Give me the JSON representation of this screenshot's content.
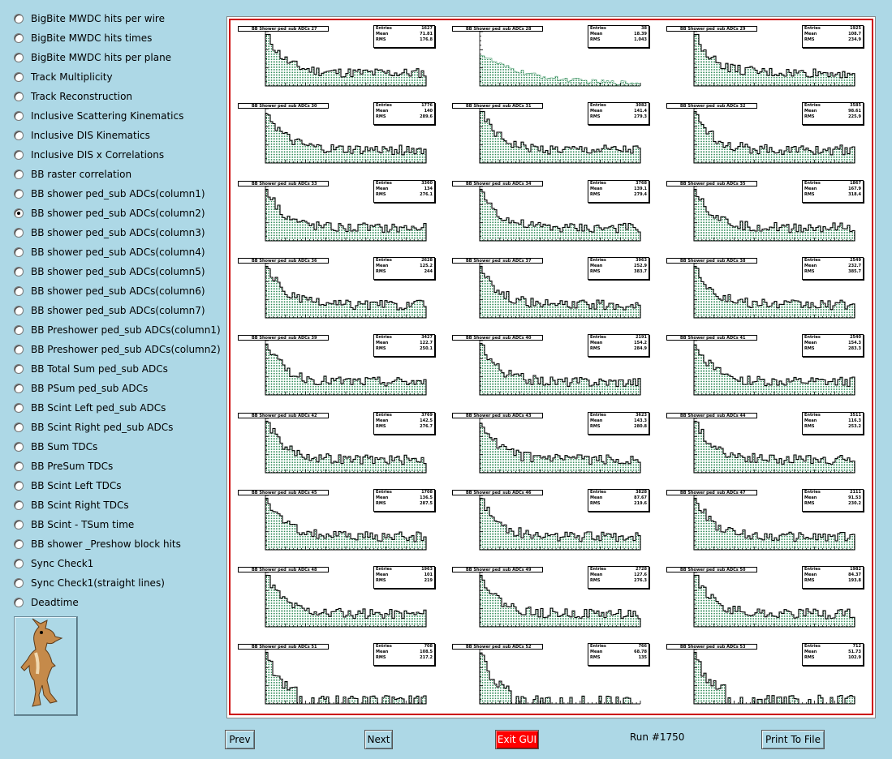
{
  "sidebar": {
    "items": [
      {
        "label": "BigBite MWDC hits per wire",
        "selected": false
      },
      {
        "label": "BigBite MWDC hits times",
        "selected": false
      },
      {
        "label": "BigBite MWDC hits per plane",
        "selected": false
      },
      {
        "label": "Track Multiplicity",
        "selected": false
      },
      {
        "label": "Track Reconstruction",
        "selected": false
      },
      {
        "label": "Inclusive Scattering Kinematics",
        "selected": false
      },
      {
        "label": "Inclusive DIS Kinematics",
        "selected": false
      },
      {
        "label": "Inclusive DIS x Correlations",
        "selected": false
      },
      {
        "label": "BB raster correlation",
        "selected": false
      },
      {
        "label": "BB shower ped_sub ADCs(column1)",
        "selected": false
      },
      {
        "label": "BB shower ped_sub ADCs(column2)",
        "selected": true
      },
      {
        "label": "BB shower ped_sub ADCs(column3)",
        "selected": false
      },
      {
        "label": "BB shower ped_sub ADCs(column4)",
        "selected": false
      },
      {
        "label": "BB shower ped_sub ADCs(column5)",
        "selected": false
      },
      {
        "label": "BB shower ped_sub ADCs(column6)",
        "selected": false
      },
      {
        "label": "BB shower ped_sub ADCs(column7)",
        "selected": false
      },
      {
        "label": "BB Preshower ped_sub ADCs(column1)",
        "selected": false
      },
      {
        "label": "BB Preshower ped_sub ADCs(column2)",
        "selected": false
      },
      {
        "label": "BB Total Sum ped_sub ADCs",
        "selected": false
      },
      {
        "label": "BB PSum ped_sub ADCs",
        "selected": false
      },
      {
        "label": "BB Scint Left ped_sub ADCs",
        "selected": false
      },
      {
        "label": "BB Scint Right ped_sub ADCs",
        "selected": false
      },
      {
        "label": "BB Sum TDCs",
        "selected": false
      },
      {
        "label": "BB PreSum TDCs",
        "selected": false
      },
      {
        "label": "BB Scint Left TDCs",
        "selected": false
      },
      {
        "label": "BB Scint Right TDCs",
        "selected": false
      },
      {
        "label": "BB Scint - TSum time",
        "selected": false
      },
      {
        "label": "BB shower _Preshow block hits",
        "selected": false
      },
      {
        "label": "Sync Check1",
        "selected": false
      },
      {
        "label": "Sync Check1(straight lines)",
        "selected": false
      },
      {
        "label": "Deadtime",
        "selected": false
      }
    ]
  },
  "logo": {
    "icon": "coyote-icon"
  },
  "canvas": {
    "pads": [
      {
        "title": "BB Shower ped_sub ADCs 27",
        "entries": "1627",
        "mean": "71.81",
        "rms": "176.8"
      },
      {
        "title": "BB Shower ped_sub ADCs 28",
        "entries": "38",
        "mean": "18.39",
        "rms": "1.043"
      },
      {
        "title": "BB Shower ped_sub ADCs 29",
        "entries": "1925",
        "mean": "108.7",
        "rms": "234.9"
      },
      {
        "title": "BB Shower ped_sub ADCs 30",
        "entries": "1776",
        "mean": "140",
        "rms": "289.6"
      },
      {
        "title": "BB Shower ped_sub ADCs 31",
        "entries": "3082",
        "mean": "141.4",
        "rms": "279.3"
      },
      {
        "title": "BB Shower ped_sub ADCs 32",
        "entries": "3585",
        "mean": "98.61",
        "rms": "225.9"
      },
      {
        "title": "BB Shower ped_sub ADCs 33",
        "entries": "3360",
        "mean": "134",
        "rms": "276.1"
      },
      {
        "title": "BB Shower ped_sub ADCs 34",
        "entries": "3768",
        "mean": "139.1",
        "rms": "279.4"
      },
      {
        "title": "BB Shower ped_sub ADCs 35",
        "entries": "1867",
        "mean": "167.9",
        "rms": "318.4"
      },
      {
        "title": "BB Shower ped_sub ADCs 36",
        "entries": "2628",
        "mean": "125.2",
        "rms": "244"
      },
      {
        "title": "BB Shower ped_sub ADCs 37",
        "entries": "3963",
        "mean": "252.9",
        "rms": "383.7"
      },
      {
        "title": "BB Shower ped_sub ADCs 38",
        "entries": "2549",
        "mean": "232.7",
        "rms": "385.7"
      },
      {
        "title": "BB Shower ped_sub ADCs 39",
        "entries": "3427",
        "mean": "122.7",
        "rms": "250.1"
      },
      {
        "title": "BB Shower ped_sub ADCs 40",
        "entries": "2191",
        "mean": "154.2",
        "rms": "284.9"
      },
      {
        "title": "BB Shower ped_sub ADCs 41",
        "entries": "2540",
        "mean": "154.3",
        "rms": "283.3"
      },
      {
        "title": "BB Shower ped_sub ADCs 42",
        "entries": "3769",
        "mean": "142.5",
        "rms": "276.7"
      },
      {
        "title": "BB Shower ped_sub ADCs 43",
        "entries": "3623",
        "mean": "143.3",
        "rms": "280.8"
      },
      {
        "title": "BB Shower ped_sub ADCs 44",
        "entries": "3511",
        "mean": "116.3",
        "rms": "253.2"
      },
      {
        "title": "BB Shower ped_sub ADCs 45",
        "entries": "1708",
        "mean": "136.5",
        "rms": "287.5"
      },
      {
        "title": "BB Shower ped_sub ADCs 46",
        "entries": "3828",
        "mean": "87.67",
        "rms": "219.6"
      },
      {
        "title": "BB Shower ped_sub ADCs 47",
        "entries": "2111",
        "mean": "91.53",
        "rms": "230.2"
      },
      {
        "title": "BB Shower ped_sub ADCs 48",
        "entries": "1963",
        "mean": "101",
        "rms": "219"
      },
      {
        "title": "BB Shower ped_sub ADCs 49",
        "entries": "2728",
        "mean": "127.6",
        "rms": "276.3"
      },
      {
        "title": "BB Shower ped_sub ADCs 50",
        "entries": "1982",
        "mean": "84.37",
        "rms": "193.8"
      },
      {
        "title": "BB Shower ped_sub ADCs 51",
        "entries": "708",
        "mean": "108.5",
        "rms": "217.2"
      },
      {
        "title": "BB Shower ped_sub ADCs 52",
        "entries": "766",
        "mean": "68.78",
        "rms": "135"
      },
      {
        "title": "BB Shower ped_sub ADCs 53",
        "entries": "712",
        "mean": "51.73",
        "rms": "102.9"
      }
    ],
    "stat_labels": {
      "entries": "Entries",
      "mean": "Mean",
      "rms": "RMS"
    },
    "fill_color": "#2e8b57",
    "line_color": "#000000",
    "frame_color": "#cc0000"
  },
  "buttons": {
    "prev": "Prev",
    "next": "Next",
    "exit": "Exit GUI",
    "print": "Print To File"
  },
  "run_label": "Run #1750"
}
